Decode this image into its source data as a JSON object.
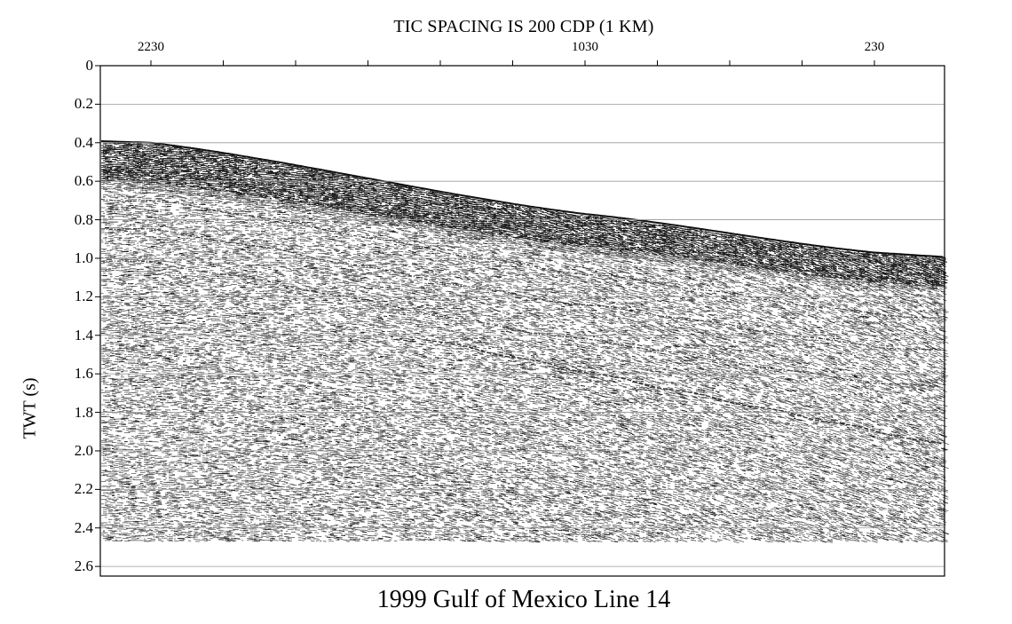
{
  "figure": {
    "top_title": "TIC SPACING IS 200 CDP (1 KM)",
    "bottom_title": "1999 Gulf of Mexico Line 14",
    "y_axis_label": "TWT (s)",
    "cdp_labels": [
      {
        "cdp": 2230,
        "label": "2230"
      },
      {
        "cdp": 1030,
        "label": "1030"
      },
      {
        "cdp": 230,
        "label": "230"
      }
    ],
    "twt_ticks": [
      "0",
      "0.2",
      "0.4",
      "0.6",
      "0.8",
      "1.0",
      "1.2",
      "1.4",
      "1.6",
      "1.8",
      "2.0",
      "2.2",
      "2.4",
      "2.6"
    ],
    "tic_spacing_cdp": 200,
    "seafloor_twt": [
      {
        "cdp": 2230,
        "twt": 0.4
      },
      {
        "cdp": 1030,
        "twt": 0.77
      },
      {
        "cdp": 230,
        "twt": 0.97
      }
    ],
    "record_end_twt": 2.47,
    "colors": {
      "ink": "#000000",
      "grid": "#9a9a9a",
      "background": "#ffffff"
    }
  }
}
